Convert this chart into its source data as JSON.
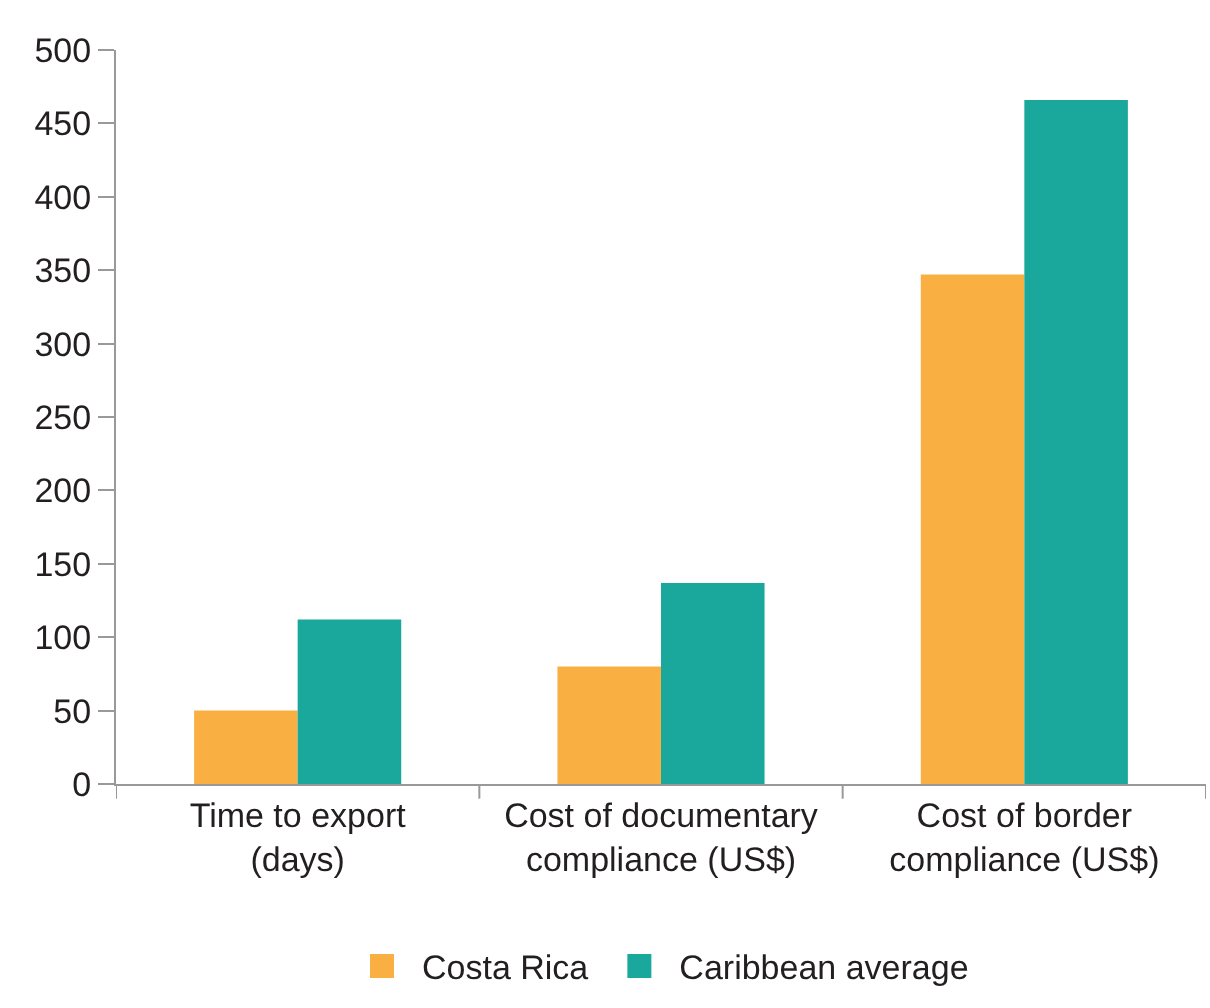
{
  "chart_data": {
    "type": "bar",
    "categories": [
      "Time to export\n(days)",
      "Cost of documentary\ncompliance (US$)",
      "Cost of border\ncompliance (US$)"
    ],
    "series": [
      {
        "name": "Costa Rica",
        "color": "#f9af41",
        "values": [
          50,
          80,
          347
        ]
      },
      {
        "name": "Caribbean average",
        "color": "#1aa79c",
        "values": [
          112,
          137,
          466
        ]
      }
    ],
    "ylim": [
      0,
      500
    ],
    "yticks": [
      0,
      50,
      100,
      150,
      200,
      250,
      300,
      350,
      400,
      450,
      500
    ],
    "legend": "bottom"
  }
}
